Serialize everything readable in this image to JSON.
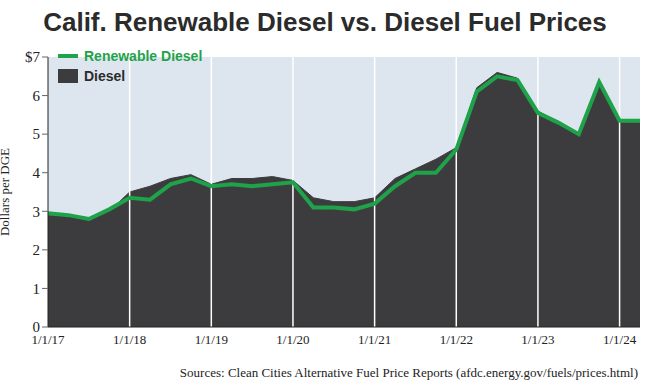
{
  "chart_data": {
    "type": "area",
    "title": "Calif. Renewable Diesel vs. Diesel Fuel Prices",
    "y_label": "Dollars per DGE",
    "source": "Sources: Clean Cities Alternative Fuel Price Reports (afdc.energy.gov/fuels/prices.html)",
    "categories": [
      "1/1/17",
      null,
      null,
      null,
      "1/1/18",
      null,
      null,
      null,
      "1/1/19",
      null,
      null,
      null,
      "1/1/20",
      null,
      null,
      null,
      "1/1/21",
      null,
      null,
      null,
      "1/1/22",
      null,
      null,
      null,
      "1/1/23",
      null,
      null,
      null,
      "1/1/24",
      null
    ],
    "series": [
      {
        "name": "Renewable Diesel",
        "type": "line",
        "color": "#1fa34a",
        "values": [
          2.95,
          2.9,
          2.8,
          3.05,
          3.35,
          3.3,
          3.7,
          3.85,
          3.65,
          3.7,
          3.65,
          3.7,
          3.75,
          3.1,
          3.1,
          3.05,
          3.2,
          3.65,
          4.0,
          4.0,
          4.6,
          6.1,
          6.5,
          6.4,
          5.55,
          5.3,
          5.0,
          6.35,
          5.35,
          5.35
        ]
      },
      {
        "name": "Diesel",
        "type": "area",
        "color": "#3c3c3e",
        "values": [
          2.9,
          2.9,
          2.75,
          3.0,
          3.5,
          3.65,
          3.85,
          3.95,
          3.7,
          3.85,
          3.85,
          3.9,
          3.8,
          3.35,
          3.25,
          3.25,
          3.35,
          3.85,
          4.1,
          4.35,
          4.65,
          6.2,
          6.6,
          6.45,
          5.6,
          5.3,
          5.0,
          6.4,
          5.3,
          5.3
        ]
      }
    ],
    "ylim": [
      0,
      7
    ],
    "yticks": [
      0,
      1,
      2,
      3,
      4,
      5,
      6,
      {
        "value": 7,
        "label": "$7"
      }
    ],
    "grid": true,
    "legend": "upper left"
  }
}
